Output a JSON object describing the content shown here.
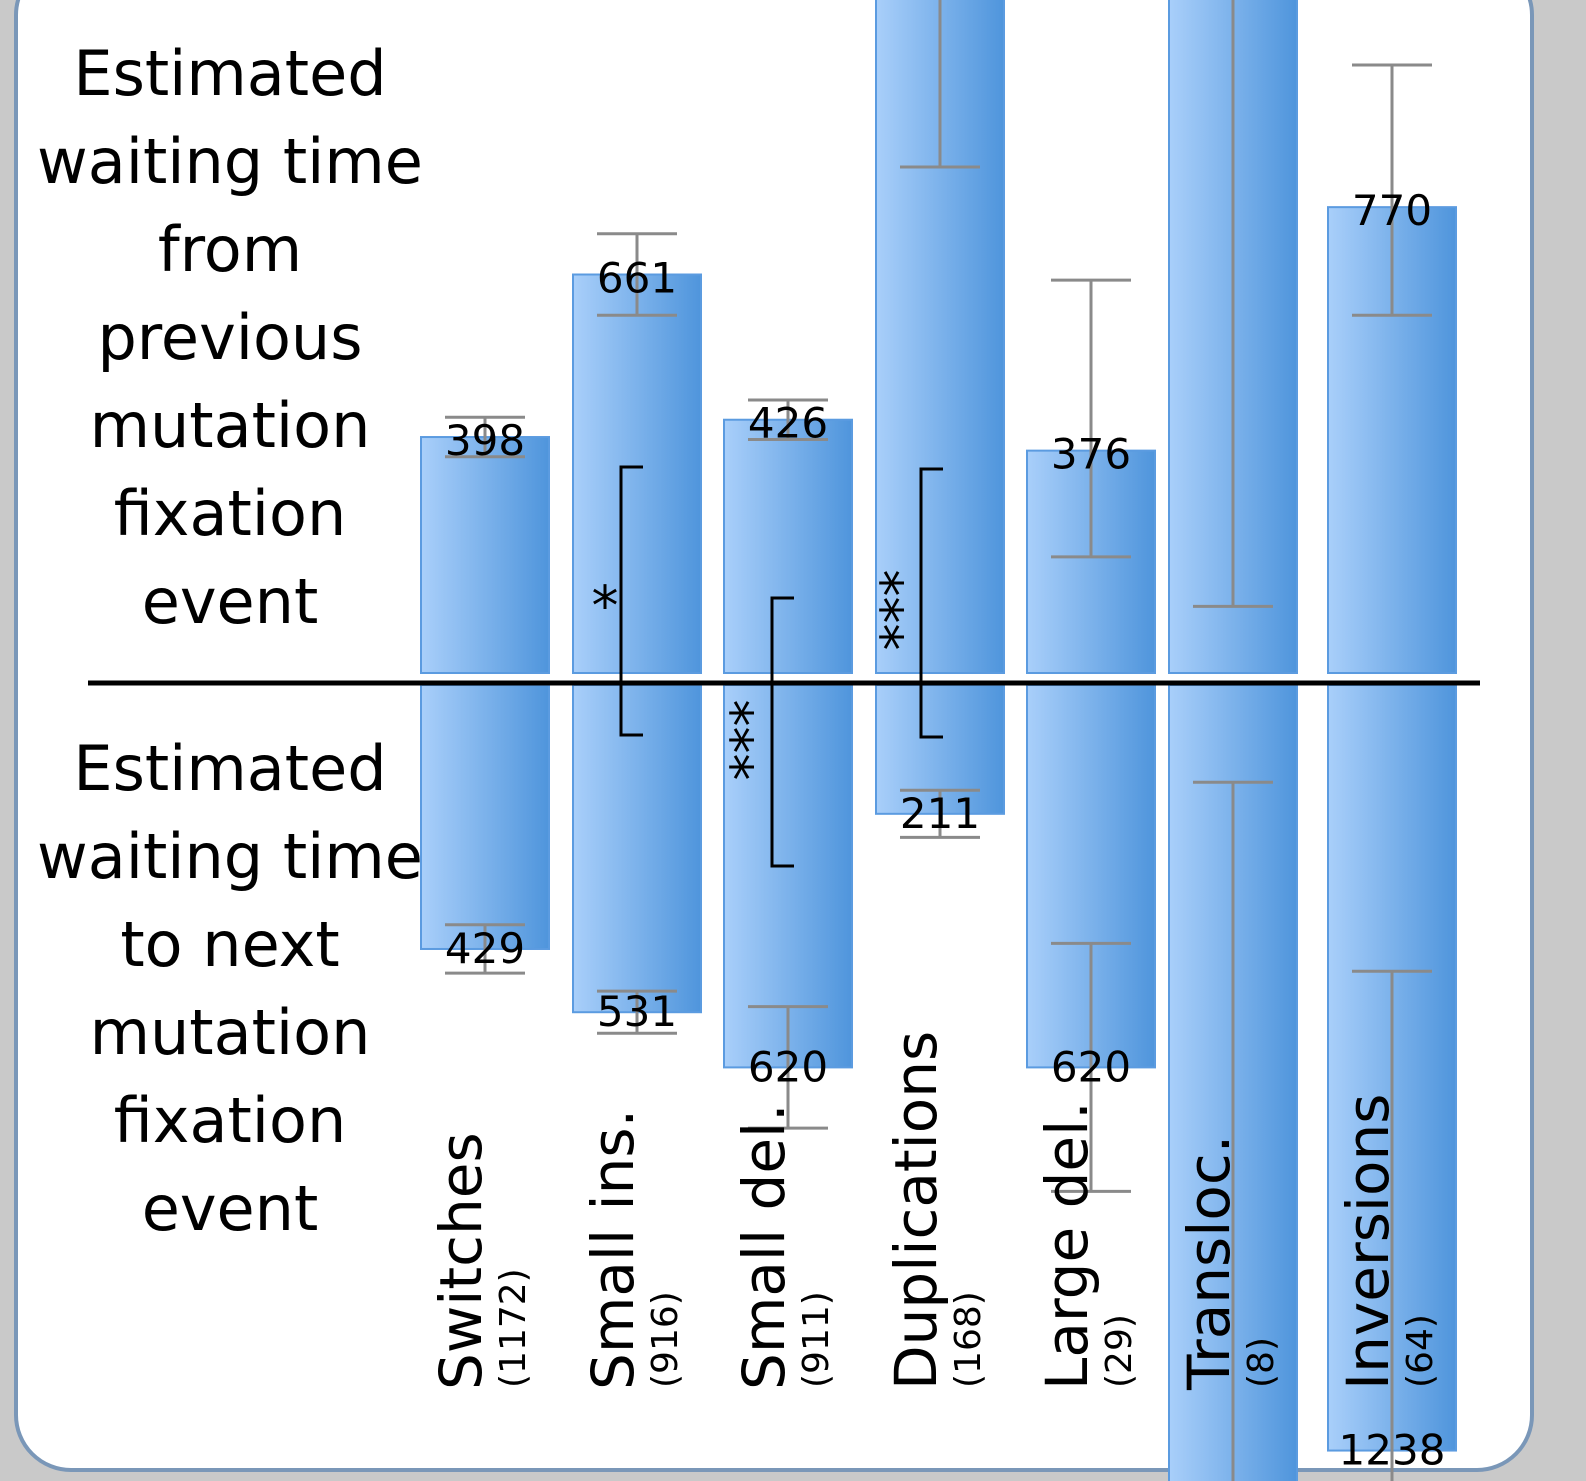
{
  "chart_data": {
    "type": "bar",
    "categories": [
      "Switches",
      "Small ins.",
      "Small del.",
      "Duplications",
      "Large del.",
      "Transloc.",
      "Inversions"
    ],
    "counts": [
      "(1172)",
      "(916)",
      "(911)",
      "(168)",
      "(29)",
      "(8)",
      "(64)"
    ],
    "series": [
      {
        "name": "Estimated waiting time from previous mutation fixation event",
        "values": [
          398,
          661,
          426,
          null,
          376,
          null,
          770
        ],
        "labels": [
          "398",
          "661",
          "426",
          "",
          "376",
          "",
          "770"
        ],
        "error_low": [
          366,
          595,
          394,
          835,
          204,
          124,
          595
        ],
        "error_high": [
          430,
          727,
          458,
          null,
          652,
          null,
          1000
        ]
      },
      {
        "name": "Estimated waiting time to next mutation fixation event",
        "values": [
          429,
          531,
          620,
          211,
          620,
          null,
          1238
        ],
        "labels": [
          "429",
          "531",
          "620",
          "211",
          "620",
          "",
          "1238"
        ],
        "error_low": [
          390,
          497,
          522,
          173,
          420,
          160,
          465
        ],
        "error_high": [
          468,
          565,
          718,
          249,
          820,
          null,
          null
        ]
      }
    ],
    "significance": [
      {
        "label": "*",
        "between": "Small ins."
      },
      {
        "label": "***",
        "between": "Small del."
      },
      {
        "label": "***",
        "between": "Duplications"
      }
    ],
    "left_labels": {
      "top": [
        "Estimated",
        "waiting time",
        "from",
        "previous",
        "mutation",
        "fixation",
        "event"
      ],
      "bottom": [
        "Estimated",
        "waiting time",
        "to next",
        "mutation",
        "fixation",
        "event"
      ]
    },
    "colors": {
      "bar_light": "#a9cffa",
      "bar_dark": "#4f95dc",
      "bar_border": "#5b9be0",
      "errorbar": "#8a8a8a",
      "background": "#c9c9c9",
      "panel": "#ffffff"
    }
  }
}
